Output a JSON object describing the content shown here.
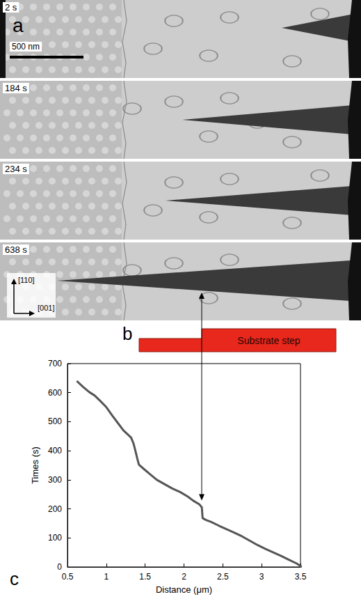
{
  "image_panel": {
    "letter": "a",
    "scale_bar": "500 nm",
    "frame_times": [
      "2 s",
      "184 s",
      "234 s",
      "638 s"
    ],
    "directions": [
      "[110]",
      "[001]"
    ]
  },
  "schematic": {
    "letter": "b",
    "label": "Substrate step",
    "color": "#e8281c"
  },
  "chart_data": {
    "letter": "c",
    "type": "line",
    "x_label": "Distance (μm)",
    "y_label": "Times (s)",
    "x": [
      3.52,
      3.45,
      3.35,
      3.25,
      3.15,
      3.05,
      2.95,
      2.85,
      2.75,
      2.65,
      2.55,
      2.45,
      2.35,
      2.28,
      2.24,
      2.23,
      2.2,
      2.12,
      2.05,
      1.95,
      1.85,
      1.75,
      1.65,
      1.55,
      1.48,
      1.42,
      1.4,
      1.37,
      1.35,
      1.32,
      1.28,
      1.22,
      1.15,
      1.08,
      1.0,
      0.92,
      0.85,
      0.78,
      0.7,
      0.62
    ],
    "values": [
      0,
      12,
      25,
      38,
      50,
      62,
      75,
      90,
      105,
      118,
      130,
      142,
      155,
      162,
      168,
      205,
      215,
      228,
      242,
      258,
      270,
      285,
      300,
      322,
      338,
      352,
      372,
      405,
      425,
      445,
      455,
      470,
      495,
      520,
      550,
      572,
      590,
      602,
      620,
      640
    ],
    "color": "#555555",
    "xlim": [
      0.5,
      3.5
    ],
    "xticks": [
      0.5,
      1,
      1.5,
      2,
      2.5,
      3,
      3.5
    ],
    "ylim": [
      0,
      700
    ],
    "yticks": [
      0,
      100,
      200,
      300,
      400,
      500,
      600,
      700
    ],
    "grid": false
  }
}
